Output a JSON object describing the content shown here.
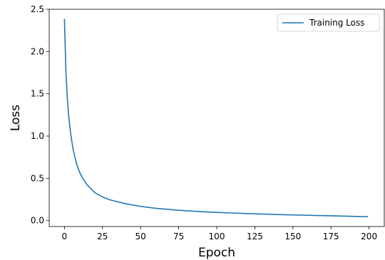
{
  "chart_data": {
    "type": "line",
    "title": "",
    "xlabel": "Epoch",
    "ylabel": "Loss",
    "xlim": [
      -10,
      210
    ],
    "ylim": [
      -0.07,
      2.5
    ],
    "xticks": [
      0,
      25,
      50,
      75,
      100,
      125,
      150,
      175,
      200
    ],
    "xtick_labels": [
      "0",
      "25",
      "50",
      "75",
      "100",
      "125",
      "150",
      "175",
      "200"
    ],
    "yticks": [
      0.0,
      0.5,
      1.0,
      1.5,
      2.0,
      2.5
    ],
    "ytick_labels": [
      "0.0",
      "0.5",
      "1.0",
      "1.5",
      "2.0",
      "2.5"
    ],
    "grid": false,
    "legend": {
      "position": "top-right",
      "entries": [
        "Training Loss"
      ]
    },
    "series": [
      {
        "name": "Training Loss",
        "color": "#1f77b4",
        "x": [
          0,
          1,
          2,
          3,
          4,
          5,
          6,
          7,
          8,
          10,
          12,
          15,
          20,
          25,
          30,
          40,
          50,
          60,
          75,
          90,
          100,
          110,
          125,
          140,
          150,
          175,
          199
        ],
        "y": [
          2.38,
          1.75,
          1.42,
          1.2,
          1.04,
          0.92,
          0.82,
          0.74,
          0.67,
          0.57,
          0.5,
          0.42,
          0.33,
          0.28,
          0.245,
          0.2,
          0.168,
          0.145,
          0.122,
          0.105,
          0.097,
          0.09,
          0.08,
          0.072,
          0.067,
          0.057,
          0.046
        ]
      }
    ]
  }
}
